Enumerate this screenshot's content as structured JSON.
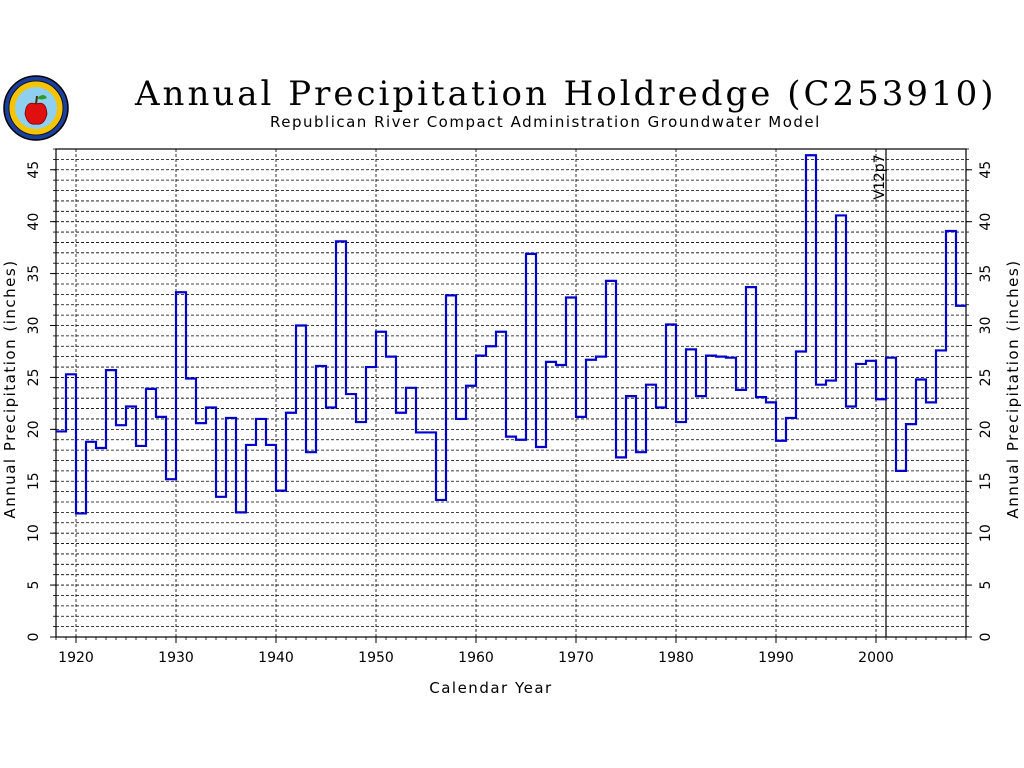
{
  "title": "Annual Precipitation Holdredge (C253910)",
  "subtitle": "Republican River Compact Administration Groundwater Model",
  "logo_icon": "apple-seal-icon",
  "colors": {
    "series": "#0000cc",
    "axis": "#000000",
    "grid": "#000000"
  },
  "chart_data": {
    "type": "line",
    "step": true,
    "title": "Annual Precipitation Holdredge (C253910)",
    "subtitle": "Republican River Compact Administration Groundwater Model",
    "xlabel": "Calendar Year",
    "ylabel": "Annual Precipitation (inches)",
    "ylabel_right": "Annual Precipitation (inches)",
    "xlim": [
      1918,
      2009
    ],
    "ylim": [
      0,
      47
    ],
    "x_ticks": [
      1920,
      1930,
      1940,
      1950,
      1960,
      1970,
      1980,
      1990,
      2000
    ],
    "y_ticks": [
      0,
      5,
      10,
      15,
      20,
      25,
      30,
      35,
      40,
      45
    ],
    "grid": true,
    "annotation": {
      "label": "V12p7",
      "x": 2001
    },
    "x": [
      1918,
      1919,
      1920,
      1921,
      1922,
      1923,
      1924,
      1925,
      1926,
      1927,
      1928,
      1929,
      1930,
      1931,
      1932,
      1933,
      1934,
      1935,
      1936,
      1937,
      1938,
      1939,
      1940,
      1941,
      1942,
      1943,
      1944,
      1945,
      1946,
      1947,
      1948,
      1949,
      1950,
      1951,
      1952,
      1953,
      1954,
      1955,
      1956,
      1957,
      1958,
      1959,
      1960,
      1961,
      1962,
      1963,
      1964,
      1965,
      1966,
      1967,
      1968,
      1969,
      1970,
      1971,
      1972,
      1973,
      1974,
      1975,
      1976,
      1977,
      1978,
      1979,
      1980,
      1981,
      1982,
      1983,
      1984,
      1985,
      1986,
      1987,
      1988,
      1989,
      1990,
      1991,
      1992,
      1993,
      1994,
      1995,
      1996,
      1997,
      1998,
      1999,
      2000,
      2001,
      2002,
      2003,
      2004,
      2005,
      2006,
      2007,
      2008
    ],
    "values": [
      19.8,
      25.3,
      11.9,
      18.8,
      18.2,
      25.7,
      20.4,
      22.2,
      18.4,
      23.9,
      21.2,
      15.2,
      33.2,
      24.9,
      20.6,
      22.1,
      13.5,
      21.1,
      12.0,
      18.5,
      21.0,
      18.5,
      14.1,
      21.6,
      30.0,
      17.8,
      26.1,
      22.1,
      38.1,
      23.4,
      20.7,
      26.0,
      29.4,
      27.0,
      21.6,
      24.0,
      19.7,
      19.7,
      13.2,
      32.9,
      21.0,
      24.2,
      27.1,
      28.0,
      29.4,
      19.3,
      19.0,
      36.9,
      18.3,
      26.5,
      26.2,
      32.7,
      21.2,
      26.7,
      27.0,
      34.3,
      17.3,
      23.2,
      17.8,
      24.3,
      22.1,
      30.1,
      20.7,
      27.7,
      23.2,
      27.1,
      27.0,
      26.9,
      23.8,
      33.7,
      23.1,
      22.6,
      18.9,
      21.1,
      27.5,
      46.4,
      24.3,
      24.7,
      40.6,
      22.2,
      26.3,
      26.6,
      22.9,
      26.9,
      16.0,
      20.5,
      24.8,
      22.6,
      27.6,
      39.1,
      31.9
    ]
  }
}
